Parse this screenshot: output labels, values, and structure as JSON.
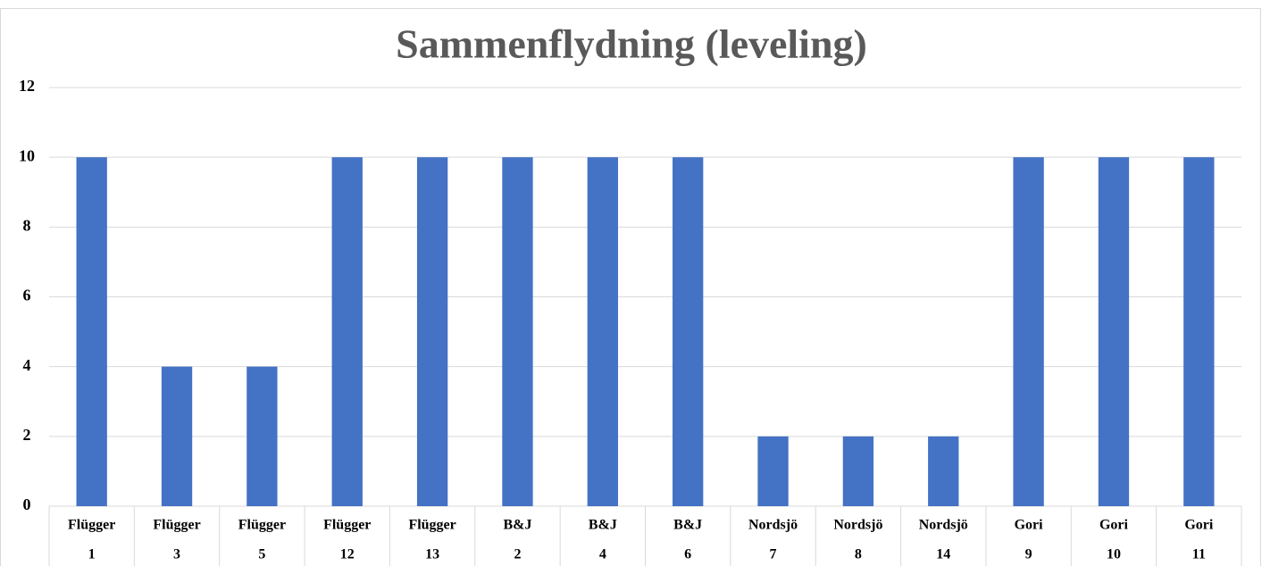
{
  "chart_data": {
    "type": "bar",
    "title": "Sammenflydning (leveling)",
    "categories": [
      [
        "Flügger",
        "1"
      ],
      [
        "Flügger",
        "3"
      ],
      [
        "Flügger",
        "5"
      ],
      [
        "Flügger",
        "12"
      ],
      [
        "Flügger",
        "13"
      ],
      [
        "B&J",
        "2"
      ],
      [
        "B&J",
        "4"
      ],
      [
        "B&J",
        "6"
      ],
      [
        "Nordsjö",
        "7"
      ],
      [
        "Nordsjö",
        "8"
      ],
      [
        "Nordsjö",
        "14"
      ],
      [
        "Gori",
        "9"
      ],
      [
        "Gori",
        "10"
      ],
      [
        "Gori",
        "11"
      ]
    ],
    "values": [
      10,
      4,
      4,
      10,
      10,
      10,
      10,
      10,
      2,
      2,
      2,
      10,
      10,
      10
    ],
    "color": "#4472c4",
    "ylim": [
      0,
      12
    ],
    "yticks": [
      0,
      2,
      4,
      6,
      8,
      10,
      12
    ],
    "grid": true
  }
}
